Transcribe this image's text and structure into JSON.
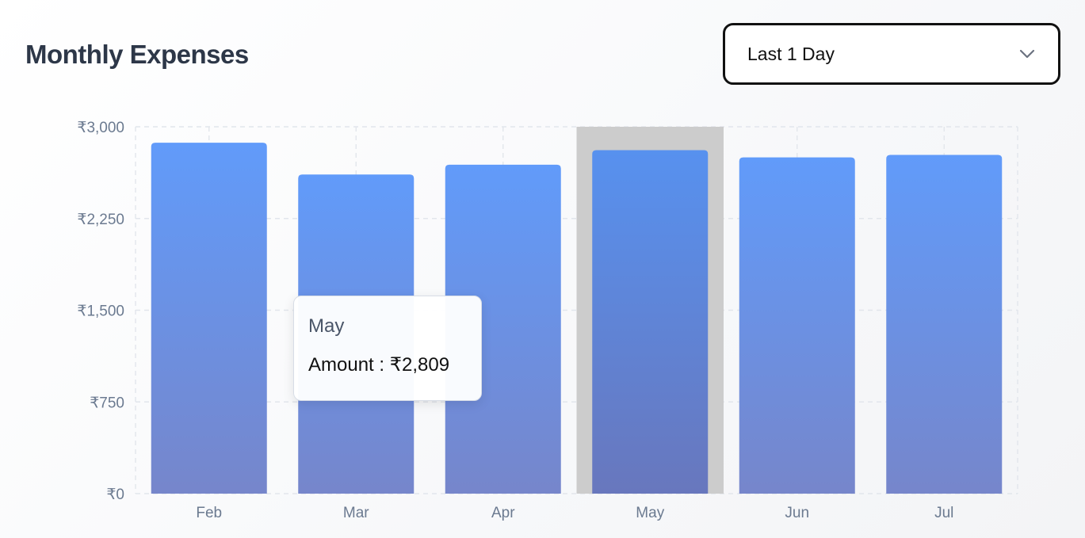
{
  "header": {
    "title": "Monthly Expenses"
  },
  "filter": {
    "selected": "Last 1 Day"
  },
  "tooltip": {
    "label": "May",
    "series": "Amount",
    "sep": " : ",
    "value": "₹2,809"
  },
  "colors": {
    "bar_top": "#619bfa",
    "bar_bottom": "#7686cb",
    "bar_active_top": "#5791ef",
    "bar_active_bottom": "#6877bd",
    "highlight": "#cccccc",
    "grid": "#e2e6ec"
  },
  "chart_data": {
    "type": "bar",
    "categories": [
      "Feb",
      "Mar",
      "Apr",
      "May",
      "Jun",
      "Jul"
    ],
    "values": [
      2870,
      2610,
      2690,
      2809,
      2750,
      2770
    ],
    "active_category": "May",
    "ylim": [
      0,
      3000
    ],
    "yticks": [
      0,
      750,
      1500,
      2250,
      3000
    ],
    "ytick_labels": [
      "₹0",
      "₹750",
      "₹1,500",
      "₹2,250",
      "₹3,000"
    ],
    "grid": true,
    "xlabel": "",
    "ylabel": ""
  }
}
